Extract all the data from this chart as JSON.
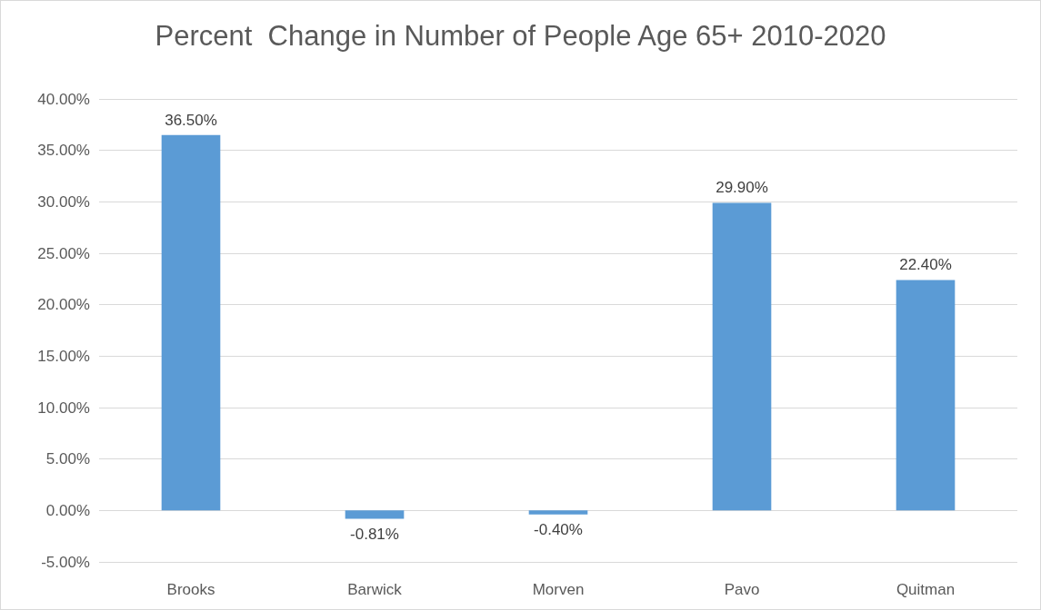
{
  "chart_data": {
    "type": "bar",
    "title": "Percent  Change in Number of People Age 65+ 2010-2020",
    "categories": [
      "Brooks",
      "Barwick",
      "Morven",
      "Pavo",
      "Quitman"
    ],
    "values": [
      36.5,
      -0.81,
      -0.4,
      29.9,
      22.4
    ],
    "value_labels": [
      "36.50%",
      "-0.81%",
      "-0.40%",
      "29.90%",
      "22.40%"
    ],
    "color": "#5b9bd5",
    "ylim": [
      -5,
      40
    ],
    "yticks": [
      {
        "value": -5,
        "label": "-5.00%"
      },
      {
        "value": 0,
        "label": "0.00%"
      },
      {
        "value": 5,
        "label": "5.00%"
      },
      {
        "value": 10,
        "label": "10.00%"
      },
      {
        "value": 15,
        "label": "15.00%"
      },
      {
        "value": 20,
        "label": "20.00%"
      },
      {
        "value": 25,
        "label": "25.00%"
      },
      {
        "value": 30,
        "label": "30.00%"
      },
      {
        "value": 35,
        "label": "35.00%"
      },
      {
        "value": 40,
        "label": "40.00%"
      }
    ],
    "grid": "y"
  }
}
